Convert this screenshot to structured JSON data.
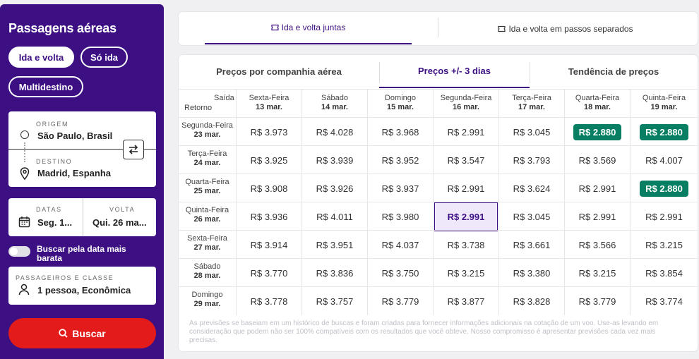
{
  "sidebar": {
    "title": "Passagens aéreas",
    "trip_types": [
      "Ida e volta",
      "Só ida",
      "Multidestino"
    ],
    "origin_label": "ORIGEM",
    "origin_value": "São Paulo, Brasil",
    "destination_label": "DESTINO",
    "destination_value": "Madrid, Espanha",
    "dates_label": "DATAS",
    "dates_value": "Seg. 1...",
    "return_label": "VOLTA",
    "return_value": "Qui. 26 ma...",
    "cheapest_toggle_label": "Buscar pela data mais barata",
    "passengers_label": "PASSAGEIROS E CLASSE",
    "passengers_value": "1 pessoa, Econômica",
    "search_button": "Buscar"
  },
  "top_tabs": {
    "together": "Ida e volta juntas",
    "separate": "Ida e volta em passos separados"
  },
  "sub_tabs": {
    "airline": "Preços por companhia aérea",
    "pm3": "Preços +/- 3 dias",
    "trend": "Tendência de preços"
  },
  "grid": {
    "corner_saida": "Saída",
    "corner_retorno": "Retorno",
    "columns": [
      {
        "day": "Sexta-Feira",
        "date": "13 mar."
      },
      {
        "day": "Sábado",
        "date": "14 mar."
      },
      {
        "day": "Domingo",
        "date": "15 mar."
      },
      {
        "day": "Segunda-Feira",
        "date": "16 mar."
      },
      {
        "day": "Terça-Feira",
        "date": "17 mar."
      },
      {
        "day": "Quarta-Feira",
        "date": "18 mar."
      },
      {
        "day": "Quinta-Feira",
        "date": "19 mar."
      }
    ],
    "rows": [
      {
        "day": "Segunda-Feira",
        "date": "23 mar.",
        "prices": [
          "R$ 3.973",
          "R$ 4.028",
          "R$ 3.968",
          "R$ 2.991",
          "R$ 3.045",
          "R$ 2.880",
          "R$ 2.880"
        ]
      },
      {
        "day": "Terça-Feira",
        "date": "24 mar.",
        "prices": [
          "R$ 3.925",
          "R$ 3.939",
          "R$ 3.952",
          "R$ 3.547",
          "R$ 3.793",
          "R$ 3.569",
          "R$ 4.007"
        ]
      },
      {
        "day": "Quarta-Feira",
        "date": "25 mar.",
        "prices": [
          "R$ 3.908",
          "R$ 3.926",
          "R$ 3.937",
          "R$ 2.991",
          "R$ 3.624",
          "R$ 2.991",
          "R$ 2.880"
        ]
      },
      {
        "day": "Quinta-Feira",
        "date": "26 mar.",
        "prices": [
          "R$ 3.936",
          "R$ 4.011",
          "R$ 3.980",
          "R$ 2.991",
          "R$ 3.045",
          "R$ 2.991",
          "R$ 2.991"
        ]
      },
      {
        "day": "Sexta-Feira",
        "date": "27 mar.",
        "prices": [
          "R$ 3.914",
          "R$ 3.951",
          "R$ 4.037",
          "R$ 3.738",
          "R$ 3.661",
          "R$ 3.566",
          "R$ 3.215"
        ]
      },
      {
        "day": "Sábado",
        "date": "28 mar.",
        "prices": [
          "R$ 3.770",
          "R$ 3.836",
          "R$ 3.750",
          "R$ 3.215",
          "R$ 3.380",
          "R$ 3.215",
          "R$ 3.854"
        ]
      },
      {
        "day": "Domingo",
        "date": "29 mar.",
        "prices": [
          "R$ 3.778",
          "R$ 3.757",
          "R$ 3.779",
          "R$ 3.877",
          "R$ 3.828",
          "R$ 3.779",
          "R$ 3.774"
        ]
      }
    ],
    "best_cells": [
      [
        0,
        5
      ],
      [
        0,
        6
      ],
      [
        2,
        6
      ]
    ],
    "selected_cell": [
      3,
      3
    ],
    "best_color": "#087e62",
    "accent_color": "#3c0f83"
  },
  "disclaimer": "As previsões se baseiam em um histórico de buscas e foram criadas para fornecer informações adicionais na cotação de um voo. Use-as levando em consideração que podem não ser 100% compatíveis com os resultados que você obteve. Nosso compromisso é apresentar previsões cada vez mais precisas."
}
